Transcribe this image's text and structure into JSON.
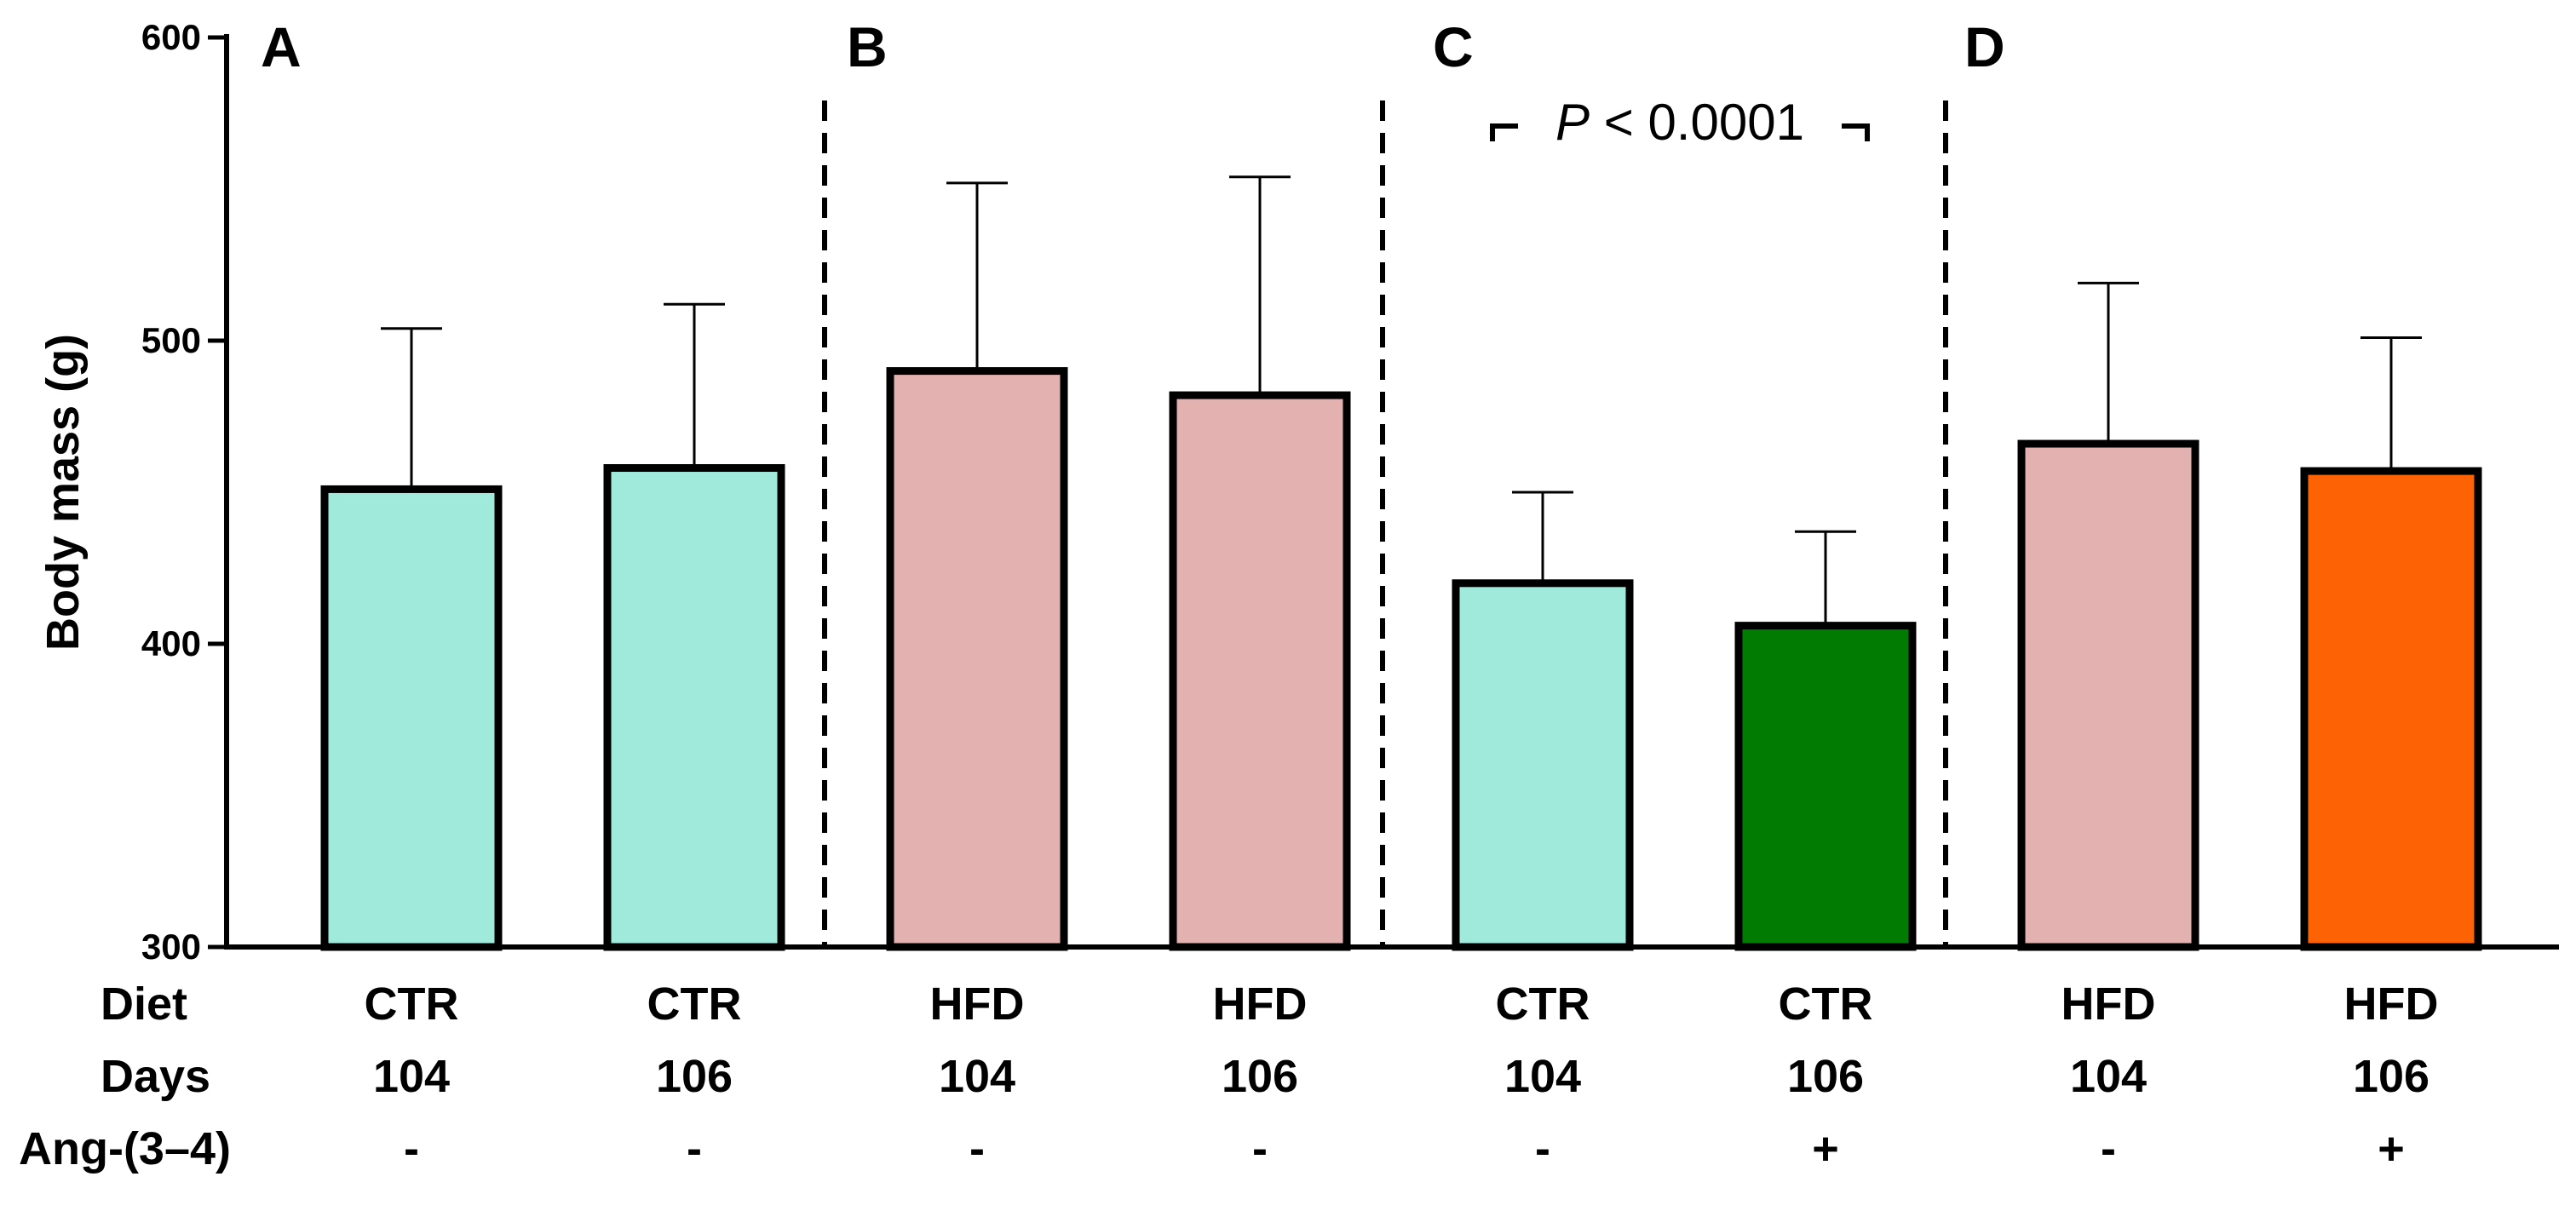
{
  "chart_data": {
    "type": "bar",
    "ylabel": "Body mass (g)",
    "ylim": [
      300,
      600
    ],
    "yticks": [
      300,
      400,
      500,
      600
    ],
    "panels": [
      {
        "label": "A"
      },
      {
        "label": "B"
      },
      {
        "label": "C",
        "annotation": "P < 0.0001",
        "annotation_prefix": "P",
        "annotation_rest": "< 0.0001"
      },
      {
        "label": "D"
      }
    ],
    "row_labels": {
      "diet": "Diet",
      "days": "Days",
      "ang": "Ang-(3–4)"
    },
    "bars": [
      {
        "diet": "CTR",
        "days": "104",
        "ang": "-",
        "value": 451,
        "error": 53,
        "color": "#a0eadb"
      },
      {
        "diet": "CTR",
        "days": "106",
        "ang": "-",
        "value": 458,
        "error": 54,
        "color": "#a0eadb"
      },
      {
        "diet": "HFD",
        "days": "104",
        "ang": "-",
        "value": 490,
        "error": 62,
        "color": "#e4b1b1"
      },
      {
        "diet": "HFD",
        "days": "106",
        "ang": "-",
        "value": 482,
        "error": 72,
        "color": "#e4b1b1"
      },
      {
        "diet": "CTR",
        "days": "104",
        "ang": "-",
        "value": 420,
        "error": 30,
        "color": "#a0eadb"
      },
      {
        "diet": "CTR",
        "days": "106",
        "ang": "+",
        "value": 406,
        "error": 31,
        "color": "#027b02"
      },
      {
        "diet": "HFD",
        "days": "104",
        "ang": "-",
        "value": 466,
        "error": 53,
        "color": "#e4b1b1"
      },
      {
        "diet": "HFD",
        "days": "106",
        "ang": "+",
        "value": 457,
        "error": 44,
        "color": "#fd6304"
      }
    ]
  }
}
